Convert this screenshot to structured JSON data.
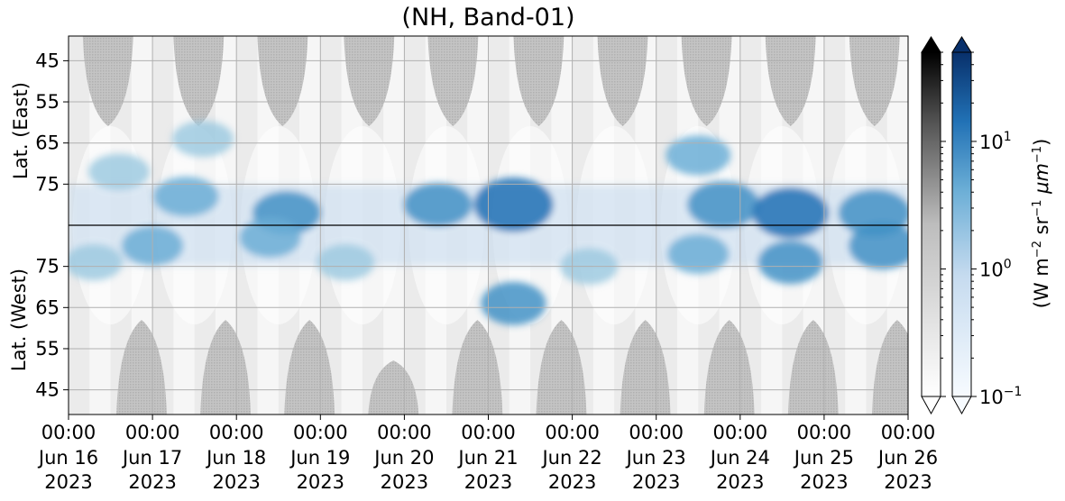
{
  "chart_data": {
    "type": "heatmap",
    "title": "(NH, Band-01)",
    "ylabel_top": "Lat. (East)",
    "ylabel_bottom": "Lat. (West)",
    "x_ticks": [
      {
        "time": "00:00",
        "date": "Jun 16",
        "year": "2023"
      },
      {
        "time": "00:00",
        "date": "Jun 17",
        "year": "2023"
      },
      {
        "time": "00:00",
        "date": "Jun 18",
        "year": "2023"
      },
      {
        "time": "00:00",
        "date": "Jun 19",
        "year": "2023"
      },
      {
        "time": "00:00",
        "date": "Jun 20",
        "year": "2023"
      },
      {
        "time": "00:00",
        "date": "Jun 21",
        "year": "2023"
      },
      {
        "time": "00:00",
        "date": "Jun 22",
        "year": "2023"
      },
      {
        "time": "00:00",
        "date": "Jun 23",
        "year": "2023"
      },
      {
        "time": "00:00",
        "date": "Jun 24",
        "year": "2023"
      },
      {
        "time": "00:00",
        "date": "Jun 25",
        "year": "2023"
      },
      {
        "time": "00:00",
        "date": "Jun 26",
        "year": "2023"
      }
    ],
    "x_range": [
      "2023-06-16 00:00",
      "2023-06-26 00:00"
    ],
    "y_ticks_east": [
      "45",
      "55",
      "65",
      "75"
    ],
    "y_ticks_west": [
      "75",
      "65",
      "55",
      "45"
    ],
    "y_lat_range_east": [
      39,
      85
    ],
    "y_lat_range_west": [
      85,
      39
    ],
    "grid": true,
    "colorbar_gray": {
      "cmap": "Greys",
      "scale": "log",
      "extend": "both"
    },
    "colorbar_blue": {
      "cmap": "Blues",
      "scale": "log",
      "extend": "both",
      "ticks": [
        {
          "base": "10",
          "exp": "−1",
          "value": 0.1
        },
        {
          "base": "10",
          "exp": "0",
          "value": 1
        },
        {
          "base": "10",
          "exp": "1",
          "value": 10
        }
      ],
      "range": [
        0.1,
        50
      ]
    },
    "colorbar_label": {
      "prefix": "(W m",
      "e1": "−2",
      "mid1": " sr",
      "e2": "−1",
      "mid2": " μm",
      "e3": "−1",
      "suffix": ")"
    },
    "colors": {
      "blue_dark": "#08306b",
      "blue_mid": "#4292c6",
      "blue_light": "#c6dbef",
      "gray_mask": "#bdbdbd"
    },
    "series": [
      {
        "values_east_peaks": [
          {
            "day": 0.6,
            "lat": 72,
            "value": 3
          },
          {
            "day": 1.4,
            "lat": 78,
            "value": 4
          },
          {
            "day": 1.6,
            "lat": 64,
            "value": 3
          },
          {
            "day": 2.6,
            "lat": 82,
            "value": 5
          },
          {
            "day": 4.4,
            "lat": 80,
            "value": 5
          },
          {
            "day": 5.3,
            "lat": 80,
            "value": 8
          },
          {
            "day": 7.5,
            "lat": 68,
            "value": 4
          },
          {
            "day": 7.8,
            "lat": 80,
            "value": 6
          },
          {
            "day": 8.6,
            "lat": 82,
            "value": 7
          },
          {
            "day": 9.6,
            "lat": 82,
            "value": 6
          }
        ],
        "values_west_peaks": [
          {
            "day": 0.3,
            "lat": 76,
            "value": 3
          },
          {
            "day": 1.0,
            "lat": 80,
            "value": 4
          },
          {
            "day": 2.4,
            "lat": 82,
            "value": 4
          },
          {
            "day": 3.3,
            "lat": 76,
            "value": 3
          },
          {
            "day": 5.3,
            "lat": 66,
            "value": 5
          },
          {
            "day": 6.2,
            "lat": 75,
            "value": 3
          },
          {
            "day": 7.5,
            "lat": 78,
            "value": 4
          },
          {
            "day": 8.6,
            "lat": 76,
            "value": 5
          },
          {
            "day": 9.7,
            "lat": 80,
            "value": 6
          }
        ]
      }
    ]
  }
}
